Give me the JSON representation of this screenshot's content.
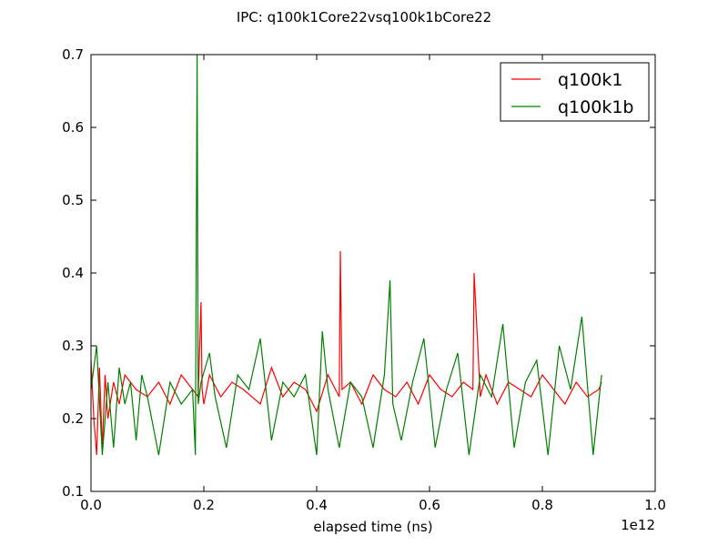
{
  "chart_data": {
    "type": "line",
    "title": "IPC: q100k1Core22vsq100k1bCore22",
    "xlabel": "elapsed time (ns)",
    "ylabel": "",
    "x_offset_label": "1e12",
    "xlim": [
      0.0,
      1.0
    ],
    "ylim": [
      0.1,
      0.7
    ],
    "xticks": [
      "0.0",
      "0.2",
      "0.4",
      "0.6",
      "0.8",
      "1.0"
    ],
    "yticks": [
      "0.1",
      "0.2",
      "0.3",
      "0.4",
      "0.5",
      "0.6",
      "0.7"
    ],
    "grid": false,
    "legend": "top-right",
    "series": [
      {
        "name": "q100k1",
        "color": "#ff0000",
        "x": [
          0.0,
          0.005,
          0.01,
          0.015,
          0.02,
          0.025,
          0.03,
          0.04,
          0.05,
          0.06,
          0.08,
          0.1,
          0.12,
          0.14,
          0.16,
          0.18,
          0.19,
          0.195,
          0.197,
          0.2,
          0.21,
          0.23,
          0.25,
          0.27,
          0.3,
          0.32,
          0.34,
          0.36,
          0.38,
          0.4,
          0.42,
          0.44,
          0.442,
          0.445,
          0.46,
          0.48,
          0.5,
          0.52,
          0.54,
          0.56,
          0.58,
          0.6,
          0.62,
          0.64,
          0.66,
          0.677,
          0.679,
          0.69,
          0.7,
          0.72,
          0.74,
          0.76,
          0.78,
          0.8,
          0.82,
          0.84,
          0.86,
          0.88,
          0.9,
          0.905
        ],
        "y": [
          0.28,
          0.2,
          0.15,
          0.27,
          0.16,
          0.26,
          0.2,
          0.25,
          0.22,
          0.26,
          0.24,
          0.23,
          0.25,
          0.22,
          0.26,
          0.24,
          0.23,
          0.36,
          0.24,
          0.22,
          0.26,
          0.23,
          0.25,
          0.24,
          0.22,
          0.27,
          0.23,
          0.25,
          0.24,
          0.21,
          0.26,
          0.23,
          0.43,
          0.24,
          0.25,
          0.22,
          0.26,
          0.24,
          0.23,
          0.25,
          0.22,
          0.26,
          0.24,
          0.23,
          0.25,
          0.24,
          0.4,
          0.23,
          0.26,
          0.22,
          0.25,
          0.24,
          0.23,
          0.26,
          0.24,
          0.22,
          0.25,
          0.23,
          0.24,
          0.25
        ]
      },
      {
        "name": "q100k1b",
        "color": "#008000",
        "x": [
          0.0,
          0.01,
          0.02,
          0.03,
          0.04,
          0.05,
          0.06,
          0.07,
          0.08,
          0.09,
          0.1,
          0.12,
          0.14,
          0.16,
          0.18,
          0.185,
          0.188,
          0.19,
          0.195,
          0.21,
          0.22,
          0.24,
          0.26,
          0.28,
          0.3,
          0.32,
          0.34,
          0.36,
          0.38,
          0.4,
          0.41,
          0.42,
          0.44,
          0.46,
          0.48,
          0.5,
          0.52,
          0.53,
          0.535,
          0.55,
          0.57,
          0.59,
          0.61,
          0.63,
          0.65,
          0.67,
          0.69,
          0.71,
          0.73,
          0.75,
          0.77,
          0.79,
          0.81,
          0.83,
          0.85,
          0.87,
          0.89,
          0.905
        ],
        "y": [
          0.24,
          0.3,
          0.15,
          0.25,
          0.16,
          0.27,
          0.22,
          0.25,
          0.17,
          0.26,
          0.23,
          0.15,
          0.25,
          0.22,
          0.24,
          0.15,
          0.7,
          0.22,
          0.25,
          0.29,
          0.23,
          0.16,
          0.26,
          0.24,
          0.31,
          0.17,
          0.25,
          0.23,
          0.26,
          0.15,
          0.32,
          0.24,
          0.16,
          0.25,
          0.23,
          0.16,
          0.26,
          0.39,
          0.22,
          0.17,
          0.25,
          0.31,
          0.16,
          0.24,
          0.29,
          0.15,
          0.26,
          0.23,
          0.33,
          0.16,
          0.25,
          0.28,
          0.15,
          0.3,
          0.24,
          0.34,
          0.15,
          0.26
        ]
      }
    ]
  }
}
